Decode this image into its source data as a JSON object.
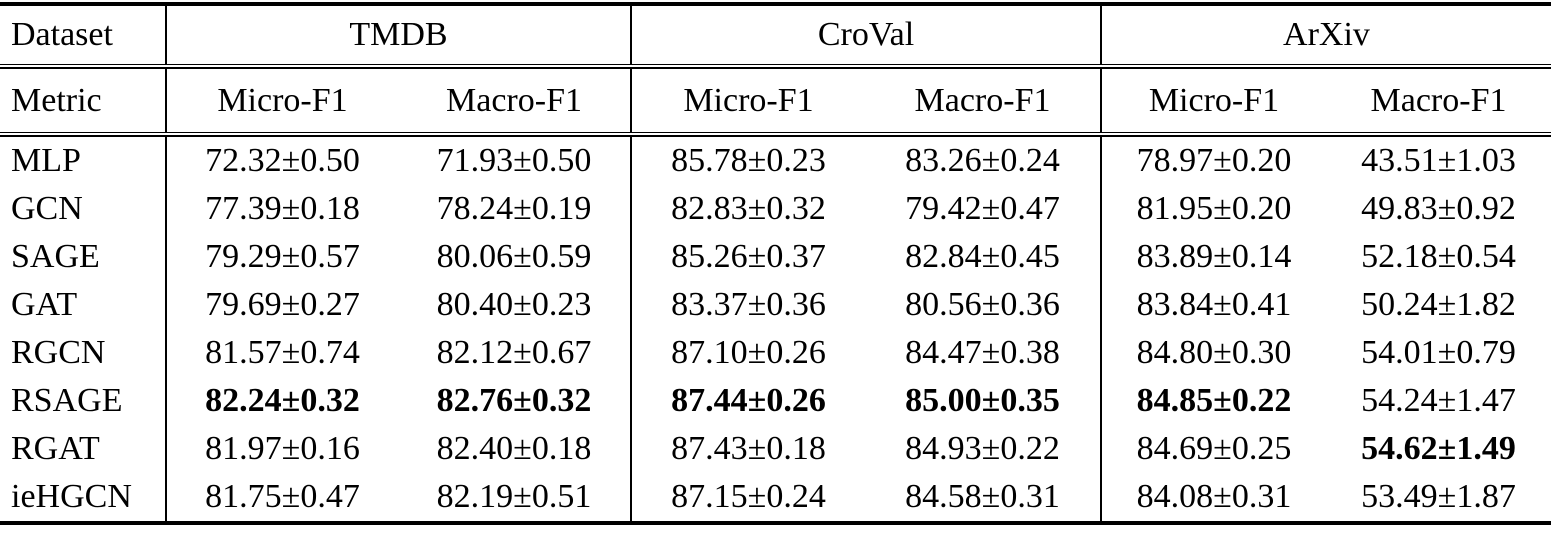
{
  "table": {
    "header": {
      "dataset_label": "Dataset",
      "metric_label": "Metric",
      "groups": [
        "TMDB",
        "CroVal",
        "ArXiv"
      ],
      "metrics": [
        "Micro-F1",
        "Macro-F1",
        "Micro-F1",
        "Macro-F1",
        "Micro-F1",
        "Macro-F1"
      ]
    },
    "rows": [
      {
        "model": "MLP",
        "cells": [
          {
            "text": "72.32±0.50",
            "bold": false
          },
          {
            "text": "71.93±0.50",
            "bold": false
          },
          {
            "text": "85.78±0.23",
            "bold": false
          },
          {
            "text": "83.26±0.24",
            "bold": false
          },
          {
            "text": "78.97±0.20",
            "bold": false
          },
          {
            "text": "43.51±1.03",
            "bold": false
          }
        ]
      },
      {
        "model": "GCN",
        "cells": [
          {
            "text": "77.39±0.18",
            "bold": false
          },
          {
            "text": "78.24±0.19",
            "bold": false
          },
          {
            "text": "82.83±0.32",
            "bold": false
          },
          {
            "text": "79.42±0.47",
            "bold": false
          },
          {
            "text": "81.95±0.20",
            "bold": false
          },
          {
            "text": "49.83±0.92",
            "bold": false
          }
        ]
      },
      {
        "model": "SAGE",
        "cells": [
          {
            "text": "79.29±0.57",
            "bold": false
          },
          {
            "text": "80.06±0.59",
            "bold": false
          },
          {
            "text": "85.26±0.37",
            "bold": false
          },
          {
            "text": "82.84±0.45",
            "bold": false
          },
          {
            "text": "83.89±0.14",
            "bold": false
          },
          {
            "text": "52.18±0.54",
            "bold": false
          }
        ]
      },
      {
        "model": "GAT",
        "cells": [
          {
            "text": "79.69±0.27",
            "bold": false
          },
          {
            "text": "80.40±0.23",
            "bold": false
          },
          {
            "text": "83.37±0.36",
            "bold": false
          },
          {
            "text": "80.56±0.36",
            "bold": false
          },
          {
            "text": "83.84±0.41",
            "bold": false
          },
          {
            "text": "50.24±1.82",
            "bold": false
          }
        ]
      },
      {
        "model": "RGCN",
        "cells": [
          {
            "text": "81.57±0.74",
            "bold": false
          },
          {
            "text": "82.12±0.67",
            "bold": false
          },
          {
            "text": "87.10±0.26",
            "bold": false
          },
          {
            "text": "84.47±0.38",
            "bold": false
          },
          {
            "text": "84.80±0.30",
            "bold": false
          },
          {
            "text": "54.01±0.79",
            "bold": false
          }
        ]
      },
      {
        "model": "RSAGE",
        "cells": [
          {
            "text": "82.24±0.32",
            "bold": true
          },
          {
            "text": "82.76±0.32",
            "bold": true
          },
          {
            "text": "87.44±0.26",
            "bold": true
          },
          {
            "text": "85.00±0.35",
            "bold": true
          },
          {
            "text": "84.85±0.22",
            "bold": true
          },
          {
            "text": "54.24±1.47",
            "bold": false
          }
        ]
      },
      {
        "model": "RGAT",
        "cells": [
          {
            "text": "81.97±0.16",
            "bold": false
          },
          {
            "text": "82.40±0.18",
            "bold": false
          },
          {
            "text": "87.43±0.18",
            "bold": false
          },
          {
            "text": "84.93±0.22",
            "bold": false
          },
          {
            "text": "84.69±0.25",
            "bold": false
          },
          {
            "text": "54.62±1.49",
            "bold": true
          }
        ]
      },
      {
        "model": "ieHGCN",
        "cells": [
          {
            "text": "81.75±0.47",
            "bold": false
          },
          {
            "text": "82.19±0.51",
            "bold": false
          },
          {
            "text": "87.15±0.24",
            "bold": false
          },
          {
            "text": "84.58±0.31",
            "bold": false
          },
          {
            "text": "84.08±0.31",
            "bold": false
          },
          {
            "text": "53.49±1.87",
            "bold": false
          }
        ]
      }
    ]
  },
  "colors": {
    "text": "#000000",
    "background": "#ffffff",
    "rule": "#000000"
  }
}
